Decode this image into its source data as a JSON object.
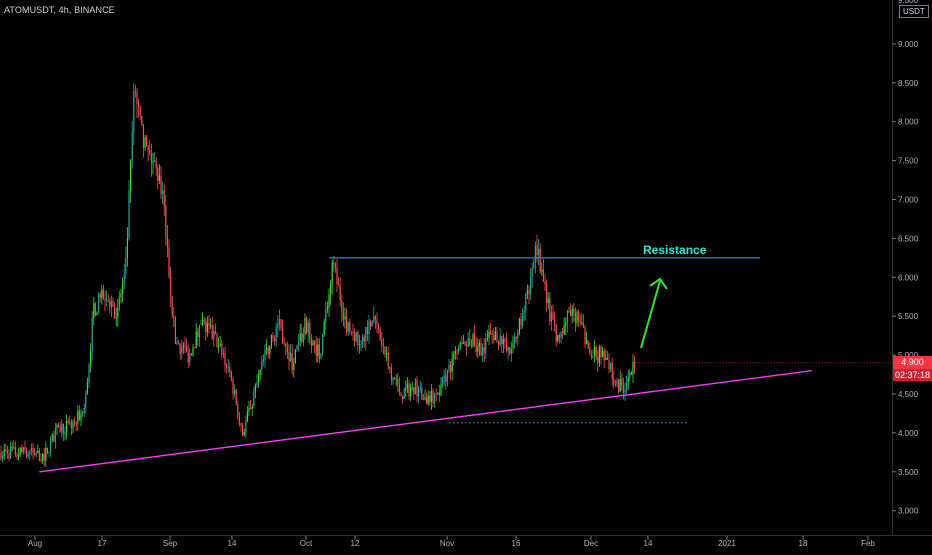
{
  "header": {
    "symbol_label": "ATOMUSDT, 4h, BINANCE",
    "currency": "USDT"
  },
  "price_axis": {
    "ticks": [
      "9.000",
      "8.500",
      "8.000",
      "7.500",
      "7.000",
      "6.500",
      "6.000",
      "5.500",
      "5.000",
      "4.500",
      "4.000",
      "3.500",
      "3.000"
    ],
    "top_partial_tick": "9.500",
    "current_price": "4.900",
    "countdown": "02:37:18"
  },
  "time_axis": {
    "labels": [
      "Aug",
      "17",
      "Sep",
      "14",
      "Oct",
      "12",
      "Nov",
      "16",
      "Dec",
      "14",
      "2021",
      "18",
      "Feb"
    ]
  },
  "colors": {
    "background": "#000000",
    "up_candle": "#26a69a",
    "up_candle_bright": "#3fdc3a",
    "down_candle": "#ef5350",
    "support_line": "#ff3dff",
    "resistance_line": "#4a7ebf",
    "resistance_label": "#2ee6d6",
    "arrow": "#2ee62e",
    "dotted_line": "#4a7ebf",
    "price_tag": "#f23645"
  },
  "annotations": {
    "resistance_label": "Resistance",
    "resistance_level": 6.25,
    "support_trendline": [
      {
        "date": "2020-08-02",
        "price": 3.5
      },
      {
        "date": "2021-01-20",
        "price": 4.8
      }
    ],
    "dotted_level": 4.13,
    "arrow": {
      "direction": "up"
    }
  },
  "chart_data": {
    "type": "candlestick",
    "title": "ATOMUSDT, 4h, BINANCE",
    "xlabel": "",
    "ylabel": "",
    "ylim": [
      2.85,
      9.6
    ],
    "grid": false,
    "series": [
      {
        "name": "ATOMUSDT",
        "x": [
          "2020-07-31",
          "2020-08-03",
          "2020-08-06",
          "2020-08-09",
          "2020-08-12",
          "2020-08-14",
          "2020-08-17",
          "2020-08-19",
          "2020-08-21",
          "2020-08-23",
          "2020-08-25",
          "2020-08-27",
          "2020-08-29",
          "2020-09-01",
          "2020-09-04",
          "2020-09-07",
          "2020-09-10",
          "2020-09-13",
          "2020-09-16",
          "2020-09-19",
          "2020-09-21",
          "2020-09-24",
          "2020-09-27",
          "2020-09-30",
          "2020-10-03",
          "2020-10-06",
          "2020-10-09",
          "2020-10-12",
          "2020-10-15",
          "2020-10-18",
          "2020-10-21",
          "2020-10-24",
          "2020-10-27",
          "2020-10-30",
          "2020-11-02",
          "2020-11-05",
          "2020-11-08",
          "2020-11-11",
          "2020-11-14",
          "2020-11-17",
          "2020-11-20",
          "2020-11-23",
          "2020-11-25",
          "2020-11-27",
          "2020-11-29",
          "2020-12-02",
          "2020-12-05",
          "2020-12-08",
          "2020-12-10",
          "2020-12-12"
        ],
        "values": [
          3.75,
          3.7,
          4.05,
          4.1,
          4.3,
          5.6,
          5.8,
          5.55,
          6.0,
          8.4,
          7.7,
          7.5,
          7.2,
          5.2,
          5.0,
          5.4,
          5.2,
          4.8,
          4.0,
          4.6,
          5.0,
          5.4,
          4.9,
          5.4,
          5.0,
          6.15,
          5.4,
          5.2,
          5.5,
          4.9,
          4.5,
          4.6,
          4.4,
          4.6,
          5.0,
          5.2,
          5.1,
          5.3,
          5.0,
          5.5,
          6.4,
          5.5,
          5.2,
          5.5,
          5.5,
          5.0,
          5.0,
          4.6,
          4.6,
          4.9
        ]
      }
    ]
  }
}
